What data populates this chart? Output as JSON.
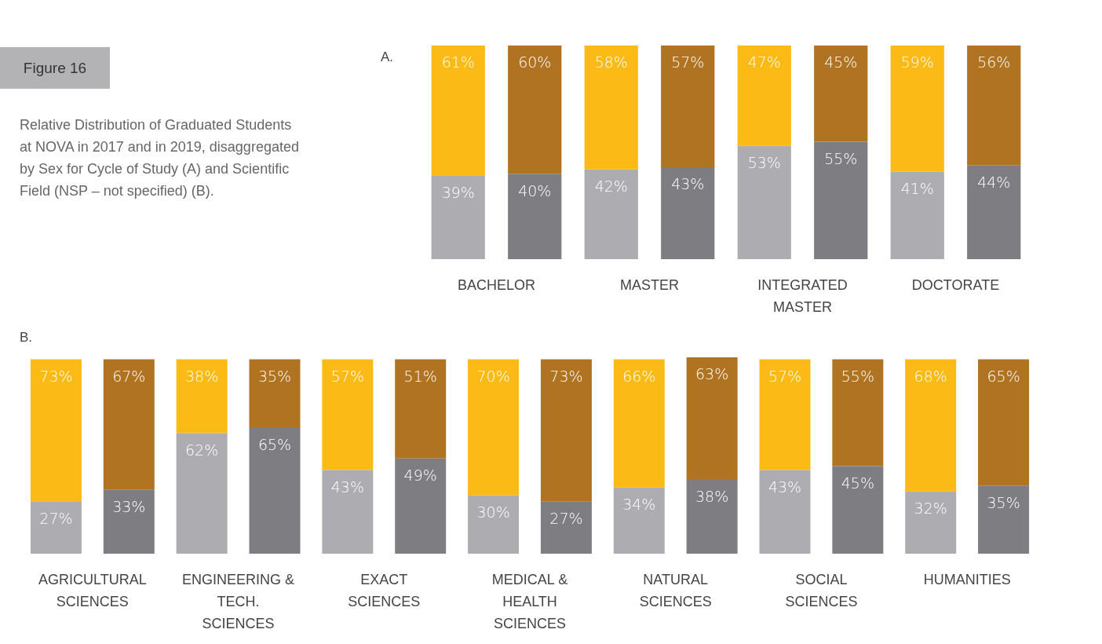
{
  "chart_data": [
    {
      "type": "bar",
      "title": "A.",
      "stacked": true,
      "ylim": [
        0,
        100
      ],
      "tick_labels": "x",
      "legend": false,
      "annotations": [
        "Figure 16",
        "Relative Distribution of Graduated Students at NOVA in 2017 and in 2019, disaggregated by Sex for Cycle of Study (A) and Scientific Field (NSP – not specified) (B)."
      ],
      "categories": [
        "BACHELOR",
        null,
        "MASTER",
        null,
        "INTEGRATED MASTER",
        null,
        "DOCTORATE",
        null
      ],
      "series": [
        {
          "colors": [
            "#adadb1",
            "#7e7e82",
            "#adadb1",
            "#7e7e82",
            "#adadb1",
            "#7e7e82",
            "#adadb1",
            "#7e7e82"
          ],
          "values": [
            39,
            40,
            42,
            43,
            53,
            55,
            41,
            44
          ],
          "value_labels": [
            "39%",
            "40%",
            "42%",
            "43%",
            "53%",
            "55%",
            "41%",
            "44%"
          ]
        },
        {
          "colors": [
            "#fbba16",
            "#b07322",
            "#fbba16",
            "#b07322",
            "#fbba16",
            "#b07322",
            "#fbba16",
            "#b07322"
          ],
          "values": [
            61,
            60,
            58,
            57,
            47,
            45,
            59,
            56
          ],
          "value_labels": [
            "61%",
            "60%",
            "58%",
            "57%",
            "47%",
            "45%",
            "59%",
            "56%"
          ]
        }
      ]
    },
    {
      "type": "bar",
      "title": "B.",
      "stacked": true,
      "ylim": [
        0,
        101
      ],
      "tick_labels": "x",
      "legend": false,
      "categories": [
        "AGRICULTURAL SCIENCES",
        null,
        "ENGINEERING & TECH. SCIENCES",
        null,
        "EXACT SCIENCES",
        null,
        "MEDICAL & HEALTH SCIENCES",
        null,
        "NATURAL SCIENCES",
        null,
        "SOCIAL SCIENCES",
        null,
        "HUMANITIES",
        null
      ],
      "series": [
        {
          "colors": [
            "#adadb1",
            "#7e7e82",
            "#adadb1",
            "#7e7e82",
            "#adadb1",
            "#7e7e82",
            "#adadb1",
            "#7e7e82",
            "#adadb1",
            "#7e7e82",
            "#adadb1",
            "#7e7e82",
            "#adadb1",
            "#7e7e82"
          ],
          "values": [
            27,
            33,
            62,
            65,
            43,
            49,
            30,
            27,
            34,
            38,
            43,
            45,
            32,
            35
          ],
          "value_labels": [
            "27%",
            "33%",
            "62%",
            "65%",
            "43%",
            "49%",
            "30%",
            "27%",
            "34%",
            "38%",
            "43%",
            "45%",
            "32%",
            "35%"
          ]
        },
        {
          "colors": [
            "#fbba16",
            "#b07322",
            "#fbba16",
            "#b07322",
            "#fbba16",
            "#b07322",
            "#fbba16",
            "#b07322",
            "#fbba16",
            "#b07322",
            "#fbba16",
            "#b07322",
            "#fbba16",
            "#b07322"
          ],
          "values": [
            73,
            67,
            38,
            35,
            57,
            51,
            70,
            73,
            66,
            63,
            57,
            55,
            68,
            65
          ],
          "value_labels": [
            "73%",
            "67%",
            "38%",
            "35%",
            "57%",
            "51%",
            "70%",
            "73%",
            "66%",
            "63%",
            "57%",
            "55%",
            "68%",
            "65%"
          ]
        }
      ]
    }
  ]
}
